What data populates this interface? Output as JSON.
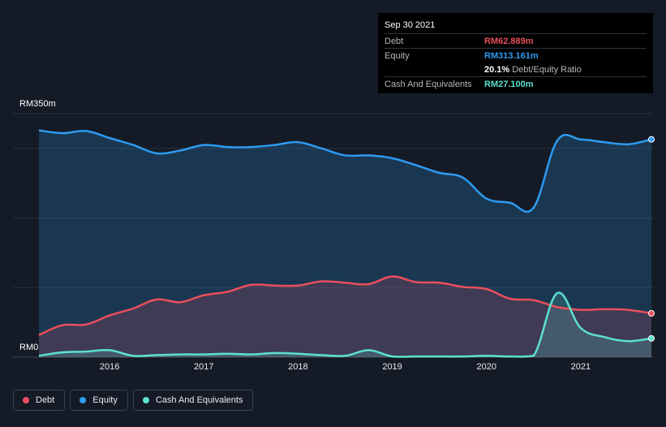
{
  "tooltip": {
    "date": "Sep 30 2021",
    "debt_label": "Debt",
    "debt_value": "RM62.889m",
    "equity_label": "Equity",
    "equity_value": "RM313.161m",
    "ratio_value": "20.1%",
    "ratio_label": "Debt/Equity Ratio",
    "cash_label": "Cash And Equivalents",
    "cash_value": "RM27.100m"
  },
  "legend": [
    {
      "label": "Debt",
      "color": "#ea4e5c"
    },
    {
      "label": "Equity",
      "color": "#2d9bf0"
    },
    {
      "label": "Cash And Equivalents",
      "color": "#5ce1cf"
    }
  ],
  "colors": {
    "background": "#151b26",
    "debt": "#ea4e5c",
    "equity": "#2d9bf0",
    "cash": "#5ce1cf",
    "grid": "#2a313d"
  },
  "chart_data": {
    "type": "area",
    "y_top_label": "RM350m",
    "y_bottom_label": "RM0",
    "ylim": [
      0,
      350
    ],
    "xlim": [
      2015.25,
      2021.75
    ],
    "x_ticks": [
      "2016",
      "2017",
      "2018",
      "2019",
      "2020",
      "2021"
    ],
    "grid": true,
    "legend_position": "bottom-left",
    "series": [
      {
        "name": "Equity",
        "x": [
          2015.25,
          2015.5,
          2015.75,
          2016.0,
          2016.25,
          2016.5,
          2016.75,
          2017.0,
          2017.25,
          2017.5,
          2017.75,
          2018.0,
          2018.25,
          2018.5,
          2018.75,
          2019.0,
          2019.25,
          2019.5,
          2019.75,
          2020.0,
          2020.25,
          2020.5,
          2020.75,
          2021.0,
          2021.25,
          2021.5,
          2021.75
        ],
        "values": [
          326,
          322,
          325,
          315,
          305,
          293,
          297,
          305,
          302,
          302,
          305,
          309,
          300,
          290,
          290,
          286,
          276,
          265,
          258,
          228,
          222,
          215,
          311,
          313,
          309,
          306,
          313
        ]
      },
      {
        "name": "Debt",
        "x": [
          2015.25,
          2015.5,
          2015.75,
          2016.0,
          2016.25,
          2016.5,
          2016.75,
          2017.0,
          2017.25,
          2017.5,
          2017.75,
          2018.0,
          2018.25,
          2018.5,
          2018.75,
          2019.0,
          2019.25,
          2019.5,
          2019.75,
          2020.0,
          2020.25,
          2020.5,
          2020.75,
          2021.0,
          2021.25,
          2021.5,
          2021.75
        ],
        "values": [
          32,
          46,
          47,
          60,
          70,
          83,
          79,
          89,
          94,
          104,
          103,
          103,
          109,
          107,
          105,
          116,
          108,
          107,
          101,
          98,
          84,
          82,
          72,
          68,
          69,
          68,
          63
        ]
      },
      {
        "name": "Cash And Equivalents",
        "x": [
          2015.25,
          2015.5,
          2015.75,
          2016.0,
          2016.25,
          2016.5,
          2016.75,
          2017.0,
          2017.25,
          2017.5,
          2017.75,
          2018.0,
          2018.25,
          2018.5,
          2018.75,
          2019.0,
          2019.25,
          2019.5,
          2019.75,
          2020.0,
          2020.25,
          2020.5,
          2020.75,
          2021.0,
          2021.25,
          2021.5,
          2021.75
        ],
        "values": [
          2,
          7,
          8,
          10,
          2,
          3,
          4,
          4,
          5,
          4,
          6,
          5,
          3,
          2,
          10,
          1,
          1,
          1,
          1,
          2,
          1,
          2,
          92,
          42,
          29,
          23,
          27
        ]
      }
    ]
  }
}
